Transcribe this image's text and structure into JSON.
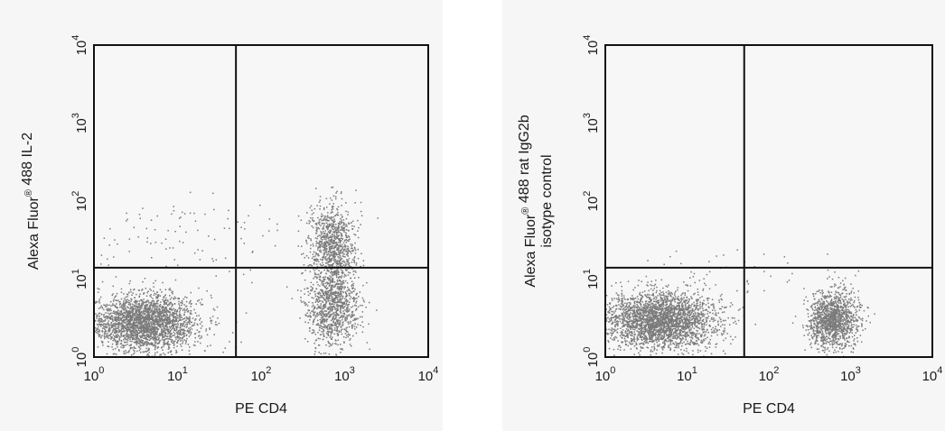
{
  "chart_data": [
    {
      "type": "scatter",
      "xlabel": "PE CD4",
      "ylabel_lines": [
        "Alexa Fluor® 488 IL-2"
      ],
      "x_scale": "log",
      "y_scale": "log",
      "xlim": [
        1,
        10000
      ],
      "ylim": [
        1,
        10000
      ],
      "x_ticks": [
        {
          "base": "10",
          "exp": "0"
        },
        {
          "base": "10",
          "exp": "1"
        },
        {
          "base": "10",
          "exp": "2"
        },
        {
          "base": "10",
          "exp": "3"
        },
        {
          "base": "10",
          "exp": "4"
        }
      ],
      "y_ticks": [
        {
          "base": "10",
          "exp": "0"
        },
        {
          "base": "10",
          "exp": "1"
        },
        {
          "base": "10",
          "exp": "2"
        },
        {
          "base": "10",
          "exp": "3"
        },
        {
          "base": "10",
          "exp": "4"
        }
      ],
      "quadrant_gates": {
        "x": 50,
        "y": 14
      },
      "point_color": "#7a7a7a",
      "populations": [
        {
          "name": "",
          "center": [
            4,
            2.8
          ],
          "spread": [
            0.32,
            0.18
          ],
          "count": 2600
        },
        {
          "name": "",
          "center": [
            12,
            35
          ],
          "spread": [
            0.8,
            0.28
          ],
          "count": 110
        },
        {
          "name": "",
          "center": [
            700,
            4.5
          ],
          "spread": [
            0.16,
            0.24
          ],
          "count": 1000
        },
        {
          "name": "",
          "center": [
            700,
            28
          ],
          "spread": [
            0.14,
            0.26
          ],
          "count": 900
        }
      ]
    },
    {
      "type": "scatter",
      "xlabel": "PE CD4",
      "ylabel_lines": [
        "Alexa Fluor® 488 rat IgG2b",
        "isotype control"
      ],
      "x_scale": "log",
      "y_scale": "log",
      "xlim": [
        1,
        10000
      ],
      "ylim": [
        1,
        10000
      ],
      "x_ticks": [
        {
          "base": "10",
          "exp": "0"
        },
        {
          "base": "10",
          "exp": "1"
        },
        {
          "base": "10",
          "exp": "2"
        },
        {
          "base": "10",
          "exp": "3"
        },
        {
          "base": "10",
          "exp": "4"
        }
      ],
      "y_ticks": [
        {
          "base": "10",
          "exp": "0"
        },
        {
          "base": "10",
          "exp": "1"
        },
        {
          "base": "10",
          "exp": "2"
        },
        {
          "base": "10",
          "exp": "3"
        },
        {
          "base": "10",
          "exp": "4"
        }
      ],
      "quadrant_gates": {
        "x": 50,
        "y": 14
      },
      "point_color": "#7a7a7a",
      "populations": [
        {
          "name": "",
          "center": [
            4.5,
            3
          ],
          "spread": [
            0.35,
            0.18
          ],
          "count": 2800
        },
        {
          "name": "",
          "center": [
            600,
            3
          ],
          "spread": [
            0.15,
            0.18
          ],
          "count": 1300
        },
        {
          "name": "",
          "center": [
            30,
            12
          ],
          "spread": [
            0.6,
            0.2
          ],
          "count": 40
        }
      ]
    }
  ]
}
